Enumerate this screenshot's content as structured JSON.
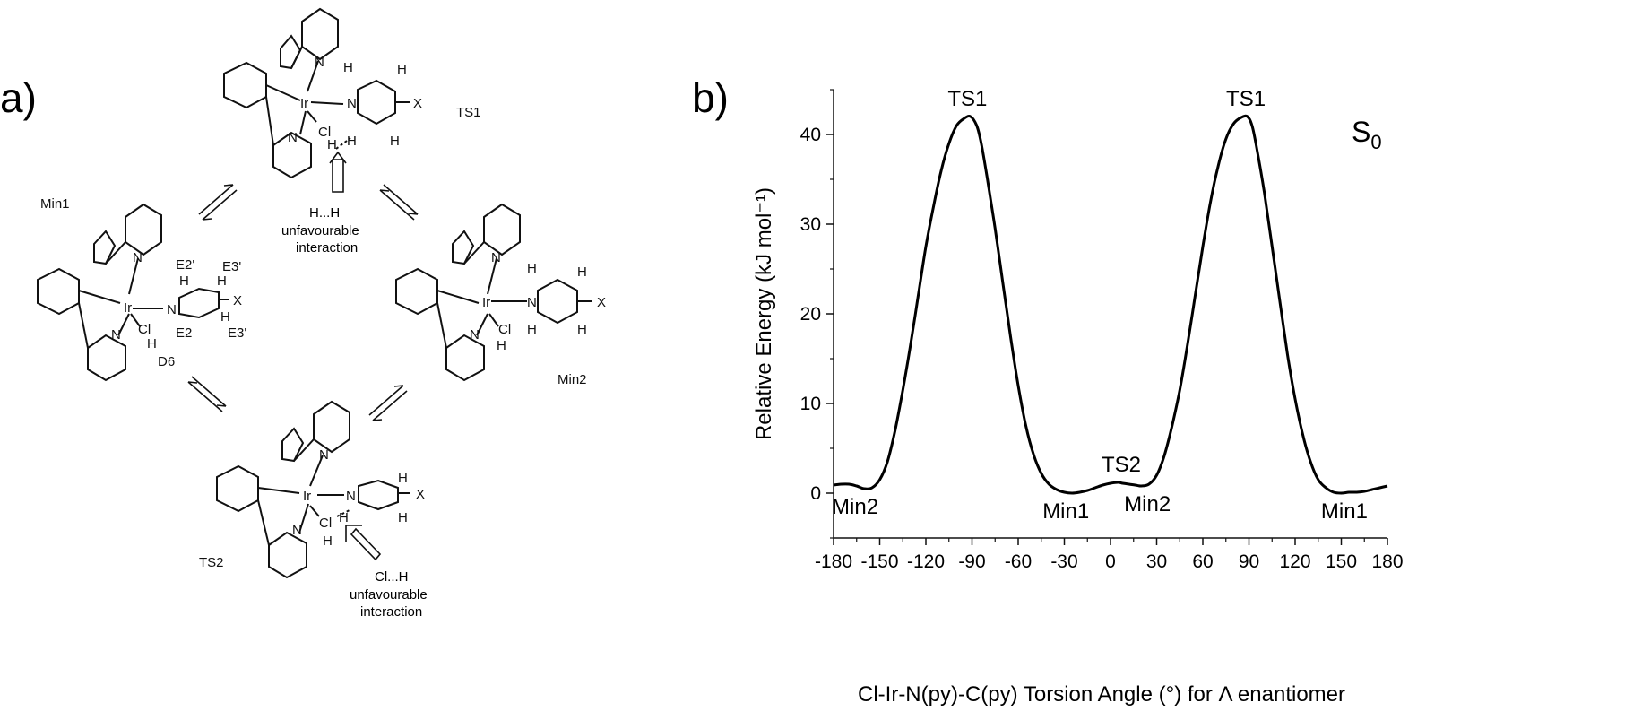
{
  "panel_a": {
    "label": "a)",
    "structures": {
      "ts1": {
        "name": "TS1",
        "atoms": [
          "Ir",
          "N",
          "N",
          "N",
          "Cl",
          "H",
          "H",
          "H",
          "H",
          "H",
          "X"
        ]
      },
      "min1": {
        "name": "Min1",
        "atoms": [
          "Ir",
          "N",
          "N",
          "N",
          "Cl",
          "H",
          "H",
          "H",
          "H",
          "X"
        ],
        "labels": [
          "E2'",
          "E3'",
          "E2",
          "E3'",
          "D6"
        ]
      },
      "min2": {
        "name": "Min2",
        "atoms": [
          "Ir",
          "N",
          "N",
          "N",
          "Cl",
          "H",
          "H",
          "H",
          "H",
          "H",
          "X"
        ]
      },
      "ts2": {
        "name": "TS2",
        "atoms": [
          "Ir",
          "N",
          "N",
          "N",
          "Cl",
          "H",
          "H",
          "H",
          "H",
          "X"
        ]
      }
    },
    "hh_note": [
      "H...H",
      "unfavourable",
      "interaction"
    ],
    "clh_note": [
      "Cl...H",
      "unfavourable",
      "interaction"
    ]
  },
  "panel_b": {
    "label": "b)"
  },
  "chart_data": {
    "type": "line",
    "title": "",
    "xlabel": "Cl-Ir-N(py)-C(py) Torsion Angle (°) for Λ enantiomer",
    "ylabel": "Relative Energy (kJ mol⁻¹)",
    "xlim": [
      -180,
      180
    ],
    "ylim": [
      -5,
      45
    ],
    "xticks": [
      -180,
      -150,
      -120,
      -90,
      -60,
      -30,
      0,
      30,
      60,
      90,
      120,
      150,
      180
    ],
    "xtick_labels": [
      "-180",
      "-150",
      "-120",
      "-90",
      "-60",
      "-30",
      "0",
      "30",
      "60",
      "90",
      "120",
      "150",
      "180"
    ],
    "yticks": [
      0,
      10,
      20,
      30,
      40
    ],
    "ytick_labels": [
      "0",
      "10",
      "20",
      "30",
      "40"
    ],
    "state_label": {
      "main": "S",
      "sub": "0"
    },
    "series": [
      {
        "x": [
          -180,
          -175,
          -170,
          -165,
          -160,
          -155,
          -150,
          -145,
          -140,
          -135,
          -130,
          -125,
          -120,
          -115,
          -110,
          -105,
          -100,
          -95,
          -91,
          -87,
          -84,
          -80,
          -75,
          -70,
          -65,
          -60,
          -55,
          -50,
          -45,
          -40,
          -35,
          -30,
          -25,
          -20,
          -15,
          -10,
          -5,
          0,
          5,
          8,
          12,
          16,
          20,
          25,
          30,
          35,
          40,
          45,
          50,
          55,
          60,
          65,
          70,
          75,
          80,
          85,
          89,
          92,
          95,
          100,
          105,
          110,
          115,
          120,
          125,
          130,
          135,
          140,
          145,
          150,
          155,
          160,
          165,
          170,
          175,
          180
        ],
        "y": [
          0.9,
          1.0,
          1.0,
          0.8,
          0.5,
          0.6,
          1.5,
          3.5,
          7.0,
          11.5,
          16.5,
          22.0,
          27.5,
          32.0,
          36.0,
          39.0,
          41.0,
          41.8,
          42.0,
          41.0,
          39.0,
          35.0,
          29.5,
          23.5,
          17.5,
          12.0,
          7.5,
          4.3,
          2.2,
          1.0,
          0.4,
          0.1,
          0.0,
          0.1,
          0.3,
          0.6,
          0.9,
          1.1,
          1.2,
          1.1,
          1.0,
          0.9,
          0.8,
          1.0,
          2.0,
          4.2,
          7.5,
          11.5,
          16.5,
          22.0,
          27.5,
          32.5,
          36.5,
          39.5,
          41.2,
          41.9,
          42.0,
          41.0,
          38.5,
          33.5,
          27.5,
          21.5,
          15.5,
          10.5,
          6.5,
          3.5,
          1.5,
          0.6,
          0.1,
          0.0,
          0.1,
          0.1,
          0.2,
          0.4,
          0.6,
          0.8
        ]
      }
    ],
    "annotations": [
      {
        "text": "TS1",
        "x": -93,
        "y": 42
      },
      {
        "text": "TS1",
        "x": 88,
        "y": 42
      },
      {
        "text": "TS2",
        "x": 7,
        "y": 1.2
      },
      {
        "text": "Min2",
        "x": -166,
        "y": 0.5
      },
      {
        "text": "Min1",
        "x": -29,
        "y": 0
      },
      {
        "text": "Min2",
        "x": 24,
        "y": 0.8
      },
      {
        "text": "Min1",
        "x": 152,
        "y": 0
      }
    ]
  }
}
